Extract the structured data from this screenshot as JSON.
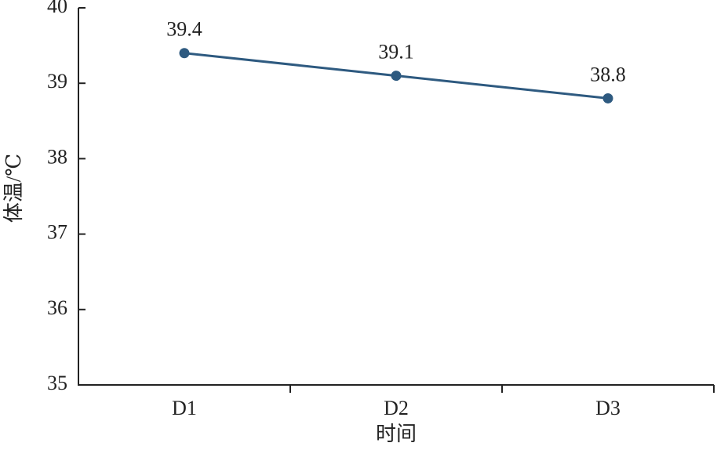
{
  "chart_data": {
    "type": "line",
    "y_label": "体温/℃",
    "x_label": "时间",
    "categories": [
      "D1",
      "D2",
      "D3"
    ],
    "series": [
      {
        "name": "体温",
        "color": "#2e5a80",
        "values": [
          39.4,
          39.1,
          38.8
        ]
      }
    ],
    "ylim": [
      35,
      40
    ],
    "yticks": [
      35,
      36,
      37,
      38,
      39,
      40
    ],
    "grid": false
  }
}
